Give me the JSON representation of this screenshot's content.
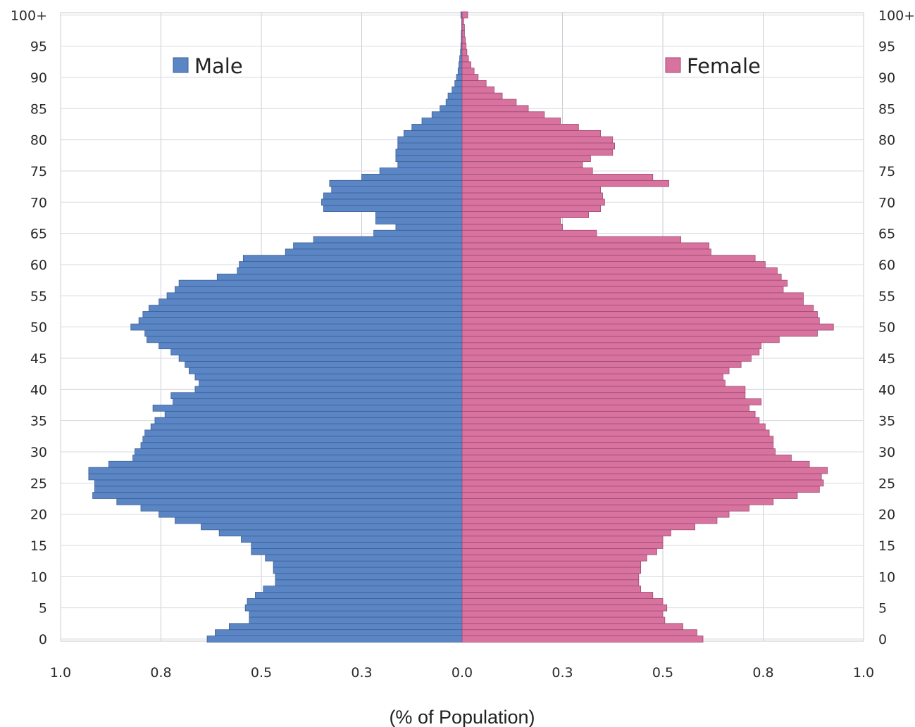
{
  "chart_data": {
    "type": "bar",
    "orientation": "horizontal",
    "subtype": "population-pyramid",
    "xlabel": "(% of Population)",
    "xlim": [
      -1.0,
      1.0
    ],
    "x_tick_labels": [
      "1.0",
      "0.8",
      "0.5",
      "0.3",
      "0.0",
      "0.3",
      "0.5",
      "0.8",
      "1.0"
    ],
    "age_tick_labels": [
      "0",
      "5",
      "10",
      "15",
      "20",
      "25",
      "30",
      "35",
      "40",
      "45",
      "50",
      "55",
      "60",
      "65",
      "70",
      "75",
      "80",
      "85",
      "90",
      "95",
      "100+"
    ],
    "categories": [
      "0",
      "1",
      "2",
      "3",
      "4",
      "5",
      "6",
      "7",
      "8",
      "9",
      "10",
      "11",
      "12",
      "13",
      "14",
      "15",
      "16",
      "17",
      "18",
      "19",
      "20",
      "21",
      "22",
      "23",
      "24",
      "25",
      "26",
      "27",
      "28",
      "29",
      "30",
      "31",
      "32",
      "33",
      "34",
      "35",
      "36",
      "37",
      "38",
      "39",
      "40",
      "41",
      "42",
      "43",
      "44",
      "45",
      "46",
      "47",
      "48",
      "49",
      "50",
      "51",
      "52",
      "53",
      "54",
      "55",
      "56",
      "57",
      "58",
      "59",
      "60",
      "61",
      "62",
      "63",
      "64",
      "65",
      "66",
      "67",
      "68",
      "69",
      "70",
      "71",
      "72",
      "73",
      "74",
      "75",
      "76",
      "77",
      "78",
      "79",
      "80",
      "81",
      "82",
      "83",
      "84",
      "85",
      "86",
      "87",
      "88",
      "89",
      "90",
      "91",
      "92",
      "93",
      "94",
      "95",
      "96",
      "97",
      "98",
      "99",
      "100+"
    ],
    "legend_position": "top-inside",
    "grid": true,
    "series": [
      {
        "name": "Male",
        "color": "#5b86c5",
        "values": [
          0.635,
          0.615,
          0.58,
          0.53,
          0.53,
          0.54,
          0.535,
          0.515,
          0.495,
          0.465,
          0.465,
          0.47,
          0.47,
          0.49,
          0.525,
          0.525,
          0.55,
          0.605,
          0.65,
          0.715,
          0.755,
          0.8,
          0.86,
          0.92,
          0.915,
          0.915,
          0.93,
          0.93,
          0.88,
          0.82,
          0.815,
          0.8,
          0.795,
          0.79,
          0.775,
          0.765,
          0.74,
          0.77,
          0.72,
          0.725,
          0.665,
          0.655,
          0.665,
          0.68,
          0.69,
          0.705,
          0.725,
          0.755,
          0.785,
          0.79,
          0.825,
          0.805,
          0.795,
          0.78,
          0.755,
          0.735,
          0.715,
          0.705,
          0.61,
          0.56,
          0.555,
          0.545,
          0.44,
          0.42,
          0.37,
          0.22,
          0.165,
          0.215,
          0.215,
          0.345,
          0.35,
          0.345,
          0.325,
          0.33,
          0.25,
          0.205,
          0.16,
          0.165,
          0.165,
          0.16,
          0.16,
          0.145,
          0.125,
          0.1,
          0.075,
          0.055,
          0.04,
          0.035,
          0.025,
          0.018,
          0.014,
          0.01,
          0.008,
          0.006,
          0.004,
          0.003,
          0.002,
          0.002,
          0.001,
          0.001,
          0.003
        ]
      },
      {
        "name": "Female",
        "color": "#d8739f",
        "values": [
          0.6,
          0.585,
          0.55,
          0.505,
          0.5,
          0.51,
          0.5,
          0.475,
          0.445,
          0.44,
          0.44,
          0.445,
          0.445,
          0.46,
          0.485,
          0.5,
          0.5,
          0.52,
          0.58,
          0.635,
          0.665,
          0.715,
          0.775,
          0.835,
          0.89,
          0.9,
          0.895,
          0.91,
          0.865,
          0.82,
          0.78,
          0.775,
          0.775,
          0.765,
          0.755,
          0.74,
          0.73,
          0.715,
          0.745,
          0.705,
          0.705,
          0.655,
          0.65,
          0.665,
          0.695,
          0.72,
          0.74,
          0.745,
          0.79,
          0.885,
          0.925,
          0.89,
          0.885,
          0.875,
          0.85,
          0.85,
          0.8,
          0.81,
          0.795,
          0.785,
          0.755,
          0.73,
          0.62,
          0.615,
          0.545,
          0.335,
          0.25,
          0.245,
          0.315,
          0.345,
          0.355,
          0.35,
          0.345,
          0.515,
          0.475,
          0.325,
          0.3,
          0.32,
          0.375,
          0.38,
          0.375,
          0.345,
          0.29,
          0.245,
          0.205,
          0.165,
          0.135,
          0.1,
          0.08,
          0.06,
          0.04,
          0.03,
          0.022,
          0.016,
          0.012,
          0.01,
          0.008,
          0.006,
          0.006,
          0.004,
          0.014
        ]
      }
    ]
  }
}
